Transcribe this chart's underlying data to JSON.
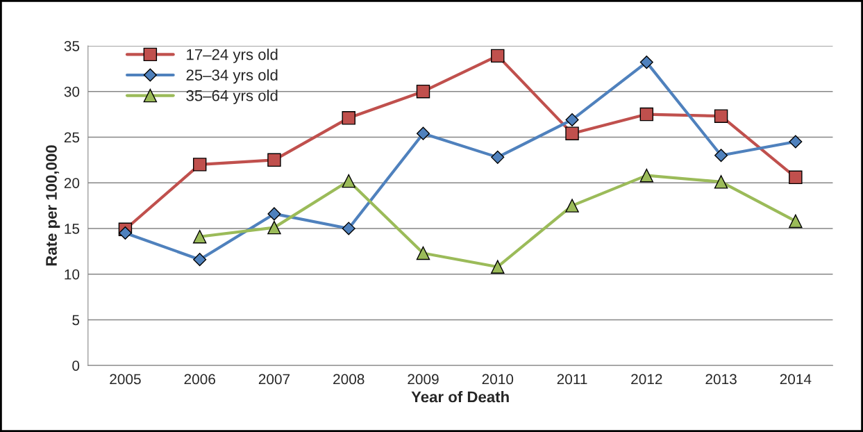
{
  "chart_data": {
    "type": "line",
    "xlabel": "Year of Death",
    "ylabel": "Rate per 100,000",
    "categories": [
      "2005",
      "2006",
      "2007",
      "2008",
      "2009",
      "2010",
      "2011",
      "2012",
      "2013",
      "2014"
    ],
    "series": [
      {
        "name": "17–24 yrs old",
        "color": "#c0504d",
        "marker": "square",
        "values": [
          14.9,
          22.0,
          22.5,
          27.1,
          30.0,
          33.9,
          25.4,
          27.5,
          27.3,
          20.6
        ]
      },
      {
        "name": "25–34 yrs old",
        "color": "#4f81bd",
        "marker": "diamond",
        "values": [
          14.5,
          11.6,
          16.6,
          15.0,
          25.4,
          22.8,
          26.9,
          33.2,
          23.0,
          24.5
        ]
      },
      {
        "name": "35–64 yrs old",
        "color": "#9bbb59",
        "marker": "triangle",
        "values": [
          null,
          14.1,
          15.1,
          20.2,
          12.3,
          10.8,
          17.5,
          20.8,
          20.1,
          15.8
        ]
      }
    ],
    "ylim": [
      0,
      35
    ],
    "yticks": [
      0,
      5,
      10,
      15,
      20,
      25,
      30,
      35
    ],
    "grid": "y",
    "legend": "top left"
  }
}
